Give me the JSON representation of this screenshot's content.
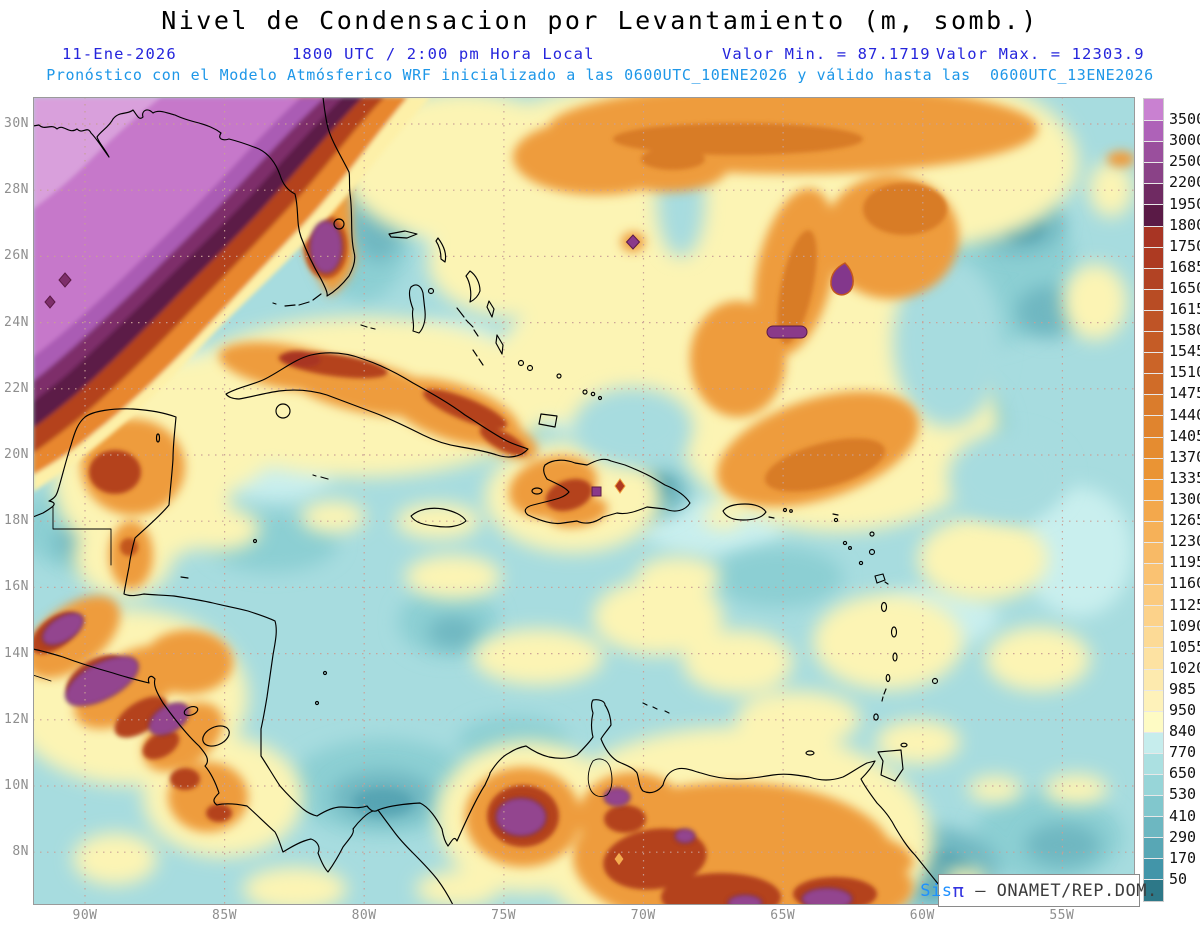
{
  "header": {
    "title": "Nivel de Condensacion por Levantamiento (m, somb.)",
    "date": "11-Ene-2026",
    "time": "1800 UTC / 2:00 pm Hora Local",
    "value_min_label": "Valor Min. = 87.1719",
    "value_max_label": "Valor Max. = 12303.9",
    "forecast_line": "Pronóstico con el Modelo Atmósferico WRF inicializado a las 0600UTC_10ENE2026 y válido hasta las  0600UTC_13ENE2026"
  },
  "map": {
    "lat_labels": [
      "30N",
      "28N",
      "26N",
      "24N",
      "22N",
      "20N",
      "18N",
      "16N",
      "14N",
      "12N",
      "10N",
      "8N"
    ],
    "lon_labels": [
      "90W",
      "85W",
      "80W",
      "75W",
      "70W",
      "65W",
      "60W",
      "55W"
    ]
  },
  "colorbar": {
    "levels": [
      3500,
      3000,
      2500,
      2200,
      1950,
      1800,
      1750,
      1685,
      1650,
      1615,
      1580,
      1545,
      1510,
      1475,
      1440,
      1405,
      1370,
      1335,
      1300,
      1265,
      1230,
      1195,
      1160,
      1125,
      1090,
      1055,
      1020,
      985,
      950,
      840,
      770,
      650,
      530,
      410,
      290,
      170,
      50
    ],
    "colors": [
      "#c981d1",
      "#ae62b8",
      "#9a4f9d",
      "#8a4287",
      "#6f2a62",
      "#5a1a46",
      "#a83524",
      "#ad3a22",
      "#b24324",
      "#b84c24",
      "#bf5426",
      "#c55c26",
      "#cb6428",
      "#d06c28",
      "#da7c2c",
      "#e0842e",
      "#e58c30",
      "#ea9434",
      "#f09e3e",
      "#f3a84c",
      "#f6b158",
      "#f8ba66",
      "#fac272",
      "#fbca7e",
      "#fcd28a",
      "#fcda96",
      "#fde2a2",
      "#fdeaae",
      "#fef2ba",
      "#fefbc4",
      "#c6eded",
      "#abe0e1",
      "#97d5d8",
      "#81c7cd",
      "#6db7c1",
      "#58a7b5",
      "#4295a9",
      "#2d7888"
    ]
  },
  "attribution": {
    "brand": "Sis",
    "pi": "π",
    "rest": " – ONAMET/REP.DOM."
  },
  "chart_data": {
    "type": "heatmap",
    "title": "Nivel de Condensacion por Levantamiento (m, somb.)",
    "units": "m",
    "valid_date": "11-Ene-2026",
    "valid_time": "1800 UTC / 2:00 pm Hora Local",
    "value_min": 87.1719,
    "value_max": 12303.9,
    "model_run": "0600UTC_10ENE2026",
    "valid_until": "0600UTC_13ENE2026",
    "x_ticks": [
      "90W",
      "85W",
      "80W",
      "75W",
      "70W",
      "65W",
      "60W",
      "55W"
    ],
    "y_ticks": [
      "30N",
      "28N",
      "26N",
      "24N",
      "22N",
      "20N",
      "18N",
      "16N",
      "14N",
      "12N",
      "10N",
      "8N"
    ],
    "contour_levels": [
      50,
      170,
      290,
      410,
      530,
      650,
      770,
      840,
      950,
      985,
      1020,
      1055,
      1090,
      1125,
      1160,
      1195,
      1230,
      1265,
      1300,
      1335,
      1370,
      1405,
      1440,
      1475,
      1510,
      1545,
      1580,
      1615,
      1650,
      1685,
      1750,
      1800,
      1950,
      2200,
      2500,
      3000,
      3500
    ],
    "legend_position": "right"
  }
}
